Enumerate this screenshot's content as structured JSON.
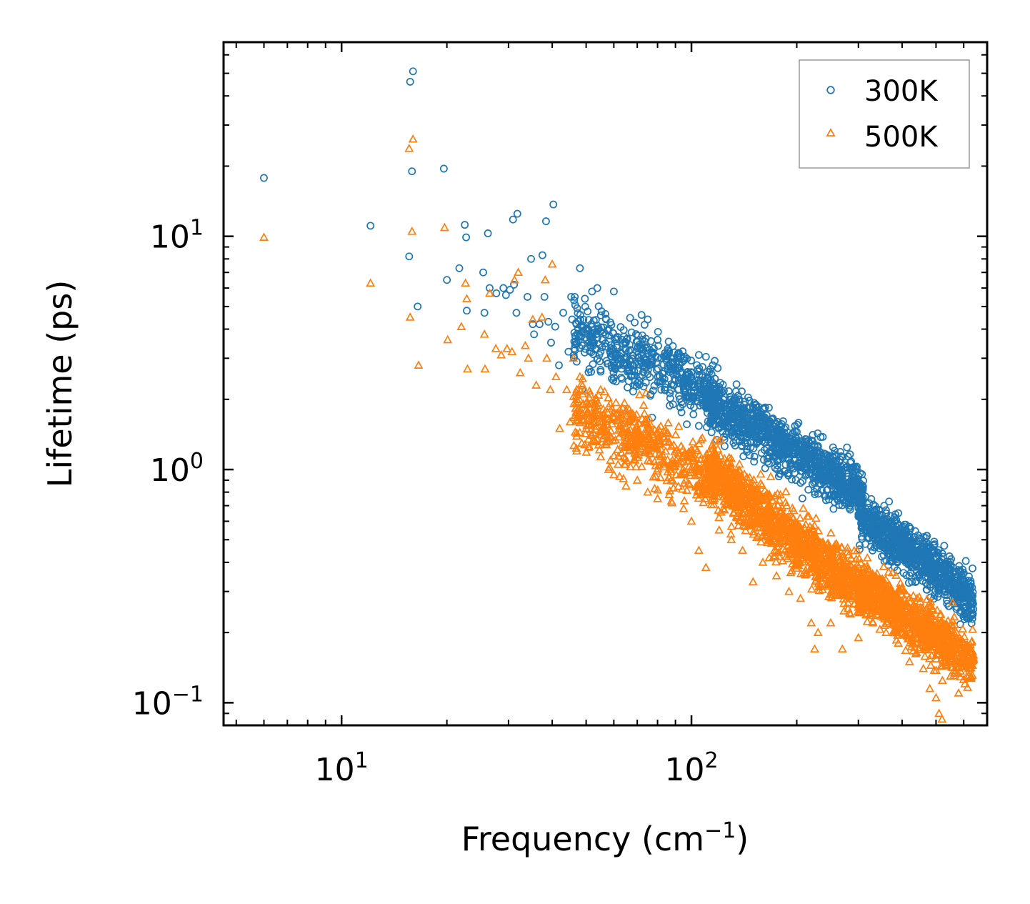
{
  "chart_data": {
    "type": "scatter",
    "title": "",
    "xlabel": "Frequency (cm",
    "xlabel_sup": "−1",
    "xlabel_end": ")",
    "ylabel": "Lifetime (ps)",
    "xscale": "log",
    "yscale": "log",
    "xlim": [
      4.6,
      700
    ],
    "ylim": [
      0.08,
      68
    ],
    "x_ticks": [
      {
        "value": 10,
        "base": "10",
        "exp": "1"
      },
      {
        "value": 100,
        "base": "10",
        "exp": "2"
      }
    ],
    "y_ticks": [
      {
        "value": 0.1,
        "base": "10",
        "exp": "−1"
      },
      {
        "value": 1,
        "base": "10",
        "exp": "0"
      },
      {
        "value": 10,
        "base": "10",
        "exp": "1"
      }
    ],
    "legend": {
      "position": "top-right"
    },
    "series": [
      {
        "name": "300K",
        "marker": "circle",
        "color": "#1f77b4",
        "points": [
          [
            6.0,
            17.8
          ],
          [
            12.1,
            11.1
          ],
          [
            15.6,
            8.2
          ],
          [
            15.7,
            46.0
          ],
          [
            16.0,
            51.0
          ],
          [
            15.9,
            19.0
          ],
          [
            16.5,
            5.0
          ],
          [
            19.6,
            19.5
          ],
          [
            20.0,
            6.5
          ],
          [
            21.7,
            7.3
          ],
          [
            22.5,
            11.2
          ],
          [
            22.7,
            9.9
          ],
          [
            22.8,
            4.8
          ],
          [
            25.4,
            7.0
          ],
          [
            25.6,
            4.7
          ],
          [
            26.2,
            10.3
          ],
          [
            26.5,
            6.0
          ],
          [
            27.7,
            5.7
          ],
          [
            29.0,
            6.0
          ],
          [
            29.5,
            5.6
          ],
          [
            30.3,
            5.9
          ],
          [
            30.9,
            11.8
          ],
          [
            31.1,
            6.2
          ],
          [
            31.6,
            4.7
          ],
          [
            31.8,
            12.5
          ],
          [
            34.0,
            5.5
          ],
          [
            34.8,
            8.0
          ],
          [
            35.2,
            4.2
          ],
          [
            35.5,
            3.8
          ],
          [
            36.8,
            4.2
          ],
          [
            37.5,
            8.3
          ],
          [
            38.0,
            5.5
          ],
          [
            38.4,
            11.6
          ],
          [
            39.0,
            4.3
          ],
          [
            39.7,
            3.5
          ],
          [
            40.3,
            13.7
          ],
          [
            40.8,
            4.1
          ],
          [
            41.8,
            2.8
          ],
          [
            43.0,
            4.7
          ],
          [
            44.5,
            3.2
          ],
          [
            45.3,
            5.5
          ],
          [
            45.6,
            4.4
          ],
          [
            46.4,
            5.5
          ],
          [
            47.0,
            2.9
          ],
          [
            48.0,
            7.3
          ],
          [
            48.7,
            2.2
          ],
          [
            49.6,
            5.4
          ],
          [
            50.5,
            4.0
          ],
          [
            51.1,
            2.7
          ],
          [
            52.0,
            5.8
          ],
          [
            53.8,
            6.0
          ],
          [
            55.0,
            3.2
          ],
          [
            58.0,
            4.0
          ],
          [
            60.0,
            5.8
          ],
          [
            62.0,
            2.8
          ],
          [
            65.0,
            3.5
          ],
          [
            70.0,
            3.1
          ],
          [
            72.0,
            4.6
          ],
          [
            75.0,
            4.4
          ],
          [
            80.0,
            3.6
          ],
          [
            85.0,
            3.1
          ],
          [
            90.0,
            2.7
          ],
          [
            95.0,
            3.0
          ],
          [
            100.0,
            2.6
          ],
          [
            105.0,
            3.1
          ],
          [
            110.0,
            2.4
          ],
          [
            115.0,
            2.8
          ],
          [
            120.0,
            2.2
          ],
          [
            130.0,
            2.0
          ],
          [
            140.0,
            1.8
          ],
          [
            150.0,
            1.7
          ],
          [
            160.0,
            1.5
          ],
          [
            175.0,
            1.4
          ],
          [
            190.0,
            1.3
          ],
          [
            200.0,
            1.45
          ],
          [
            215.0,
            1.1
          ],
          [
            225.0,
            1.25
          ],
          [
            240.0,
            1.0
          ],
          [
            255.0,
            0.95
          ],
          [
            270.0,
            0.85
          ],
          [
            290.0,
            0.72
          ],
          [
            310.0,
            0.6
          ],
          [
            340.0,
            0.5
          ],
          [
            370.0,
            0.55
          ],
          [
            390.0,
            0.65
          ],
          [
            410.0,
            0.58
          ],
          [
            440.0,
            0.45
          ],
          [
            470.0,
            0.52
          ],
          [
            500.0,
            0.38
          ],
          [
            530.0,
            0.33
          ],
          [
            560.0,
            0.3
          ],
          [
            600.0,
            0.27
          ],
          [
            630.0,
            0.25
          ]
        ],
        "bands": [
          {
            "x_from": 46,
            "x_to": 120,
            "y_at_start": 4.0,
            "y_at_end": 2.0,
            "spread_decades": 0.3,
            "count": 520
          },
          {
            "x_from": 110,
            "x_to": 310,
            "y_at_start": 2.0,
            "y_at_end": 0.8,
            "spread_decades": 0.24,
            "count": 1050
          },
          {
            "x_from": 300,
            "x_to": 640,
            "y_at_start": 0.65,
            "y_at_end": 0.28,
            "spread_decades": 0.22,
            "count": 880
          }
        ]
      },
      {
        "name": "500K",
        "marker": "triangle",
        "color": "#ff7f0e",
        "points": [
          [
            6.0,
            9.9
          ],
          [
            12.1,
            6.3
          ],
          [
            15.6,
            23.8
          ],
          [
            16.0,
            26.1
          ],
          [
            15.9,
            10.5
          ],
          [
            15.7,
            4.5
          ],
          [
            16.6,
            2.8
          ],
          [
            19.7,
            10.9
          ],
          [
            20.1,
            3.6
          ],
          [
            22.0,
            4.1
          ],
          [
            22.6,
            6.3
          ],
          [
            22.8,
            5.4
          ],
          [
            22.9,
            2.7
          ],
          [
            25.6,
            3.8
          ],
          [
            25.7,
            2.7
          ],
          [
            26.5,
            5.7
          ],
          [
            27.6,
            3.3
          ],
          [
            28.6,
            3.1
          ],
          [
            29.7,
            3.3
          ],
          [
            30.7,
            3.2
          ],
          [
            31.2,
            6.5
          ],
          [
            32.0,
            7.0
          ],
          [
            32.4,
            2.6
          ],
          [
            33.5,
            3.4
          ],
          [
            34.2,
            3.0
          ],
          [
            35.2,
            4.4
          ],
          [
            36.0,
            2.3
          ],
          [
            37.4,
            4.5
          ],
          [
            38.2,
            6.5
          ],
          [
            38.6,
            3.0
          ],
          [
            40.0,
            7.6
          ],
          [
            39.5,
            2.2
          ],
          [
            41.0,
            2.5
          ],
          [
            42.0,
            1.5
          ],
          [
            44.0,
            2.2
          ],
          [
            45.0,
            1.6
          ],
          [
            46.0,
            3.0
          ],
          [
            47.0,
            1.2
          ],
          [
            48.0,
            2.5
          ],
          [
            50.0,
            1.8
          ],
          [
            52.0,
            1.4
          ],
          [
            55.0,
            2.2
          ],
          [
            58.0,
            1.0
          ],
          [
            60.0,
            0.95
          ],
          [
            63.0,
            1.5
          ],
          [
            65.0,
            0.85
          ],
          [
            70.0,
            0.9
          ],
          [
            75.0,
            0.8
          ],
          [
            80.0,
            0.75
          ],
          [
            88.0,
            0.72
          ],
          [
            95.0,
            0.68
          ],
          [
            100.0,
            0.6
          ],
          [
            105.0,
            0.45
          ],
          [
            110.0,
            0.38
          ],
          [
            120.0,
            0.55
          ],
          [
            130.0,
            0.5
          ],
          [
            140.0,
            0.45
          ],
          [
            150.0,
            0.33
          ],
          [
            160.0,
            0.4
          ],
          [
            175.0,
            0.35
          ],
          [
            190.0,
            0.3
          ],
          [
            205.0,
            0.28
          ],
          [
            220.0,
            0.22
          ],
          [
            225.0,
            0.17
          ],
          [
            230.0,
            0.2
          ],
          [
            250.0,
            0.22
          ],
          [
            270.0,
            0.17
          ],
          [
            300.0,
            0.19
          ],
          [
            330.0,
            0.22
          ],
          [
            360.0,
            0.2
          ],
          [
            390.0,
            0.18
          ],
          [
            420.0,
            0.15
          ],
          [
            460.0,
            0.14
          ],
          [
            480.0,
            0.115
          ],
          [
            500.0,
            0.105
          ],
          [
            510.0,
            0.09
          ],
          [
            520.0,
            0.085
          ],
          [
            550.0,
            0.13
          ],
          [
            580.0,
            0.11
          ],
          [
            620.0,
            0.14
          ],
          [
            640.0,
            0.16
          ]
        ],
        "bands": [
          {
            "x_from": 46,
            "x_to": 120,
            "y_at_start": 1.8,
            "y_at_end": 0.9,
            "spread_decades": 0.3,
            "count": 520
          },
          {
            "x_from": 110,
            "x_to": 310,
            "y_at_start": 1.0,
            "y_at_end": 0.3,
            "spread_decades": 0.26,
            "count": 1150
          },
          {
            "x_from": 300,
            "x_to": 640,
            "y_at_start": 0.32,
            "y_at_end": 0.15,
            "spread_decades": 0.24,
            "count": 900
          }
        ]
      }
    ]
  }
}
